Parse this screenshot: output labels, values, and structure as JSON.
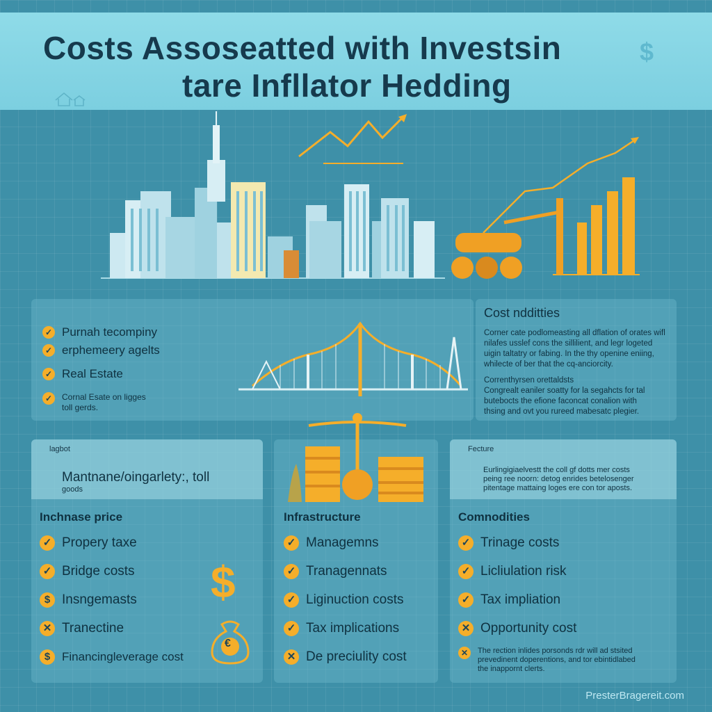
{
  "title": {
    "line1": "Costs Assoseatted with Investsin",
    "line2": "tare Infllator Hedding"
  },
  "middle_left_panel": {
    "items": [
      {
        "label": "Purnah tecompiny"
      },
      {
        "label": "erphemeery agelts"
      },
      {
        "label": "Real Estate"
      }
    ],
    "footnote": {
      "line1": "Cornal Esate on ligges",
      "line2": "toll gerds."
    }
  },
  "middle_right_panel": {
    "heading": "Cost ndditties",
    "para1": {
      "line1": "Corner cate podlomeasting all dflation of orates wifl",
      "line2": "nilafes usslef cons the sillilient, and legr logeted",
      "line3": "uigin taltatry or fabing. In the thy openine eniing,",
      "line4": "whilecte of ber that the cq-anciorcity."
    },
    "para2": {
      "line1": "Correnthyrsen orettaldsts",
      "line2": "Congrealt eaniler soatty for la segahcts for tal",
      "line3": "butebocts the efione faconcat conalion with",
      "line4": "thsing and ovt you rureed mabesatc plegier."
    }
  },
  "columns": [
    {
      "tag": "lagbot",
      "header_main": "Mantnane/oingarlety:, toll",
      "header_sub": "goods",
      "heading": "Inchnase price",
      "items": [
        {
          "label": "Propery taxe",
          "mark": "✓"
        },
        {
          "label": "Bridge costs",
          "mark": "✓"
        },
        {
          "label": "Insngemasts",
          "mark": "$"
        },
        {
          "label": "Tranectine",
          "mark": "✕"
        },
        {
          "label": "Financingleverage cost",
          "mark": "$"
        }
      ]
    },
    {
      "heading": "Infrastructure",
      "items": [
        {
          "label": "Managemns",
          "mark": "✓"
        },
        {
          "label": "Tranagennats",
          "mark": "✓"
        },
        {
          "label": "Liginuction costs",
          "mark": "✓"
        },
        {
          "label": "Tax implications",
          "mark": "✓"
        },
        {
          "label": "De preciulity cost",
          "mark": "✕"
        }
      ]
    },
    {
      "tag": "Fecture",
      "body": {
        "line1": "Eurlingigiaelvestt the coll gf dotts mer costs",
        "line2": "peing ree noorn: detog enrides betelosenger",
        "line3": "pitentage mattaing loges ere con tor aposts."
      },
      "heading": "Comnodities",
      "items": [
        {
          "label": "Trinage costs",
          "mark": "✓"
        },
        {
          "label": "Licliulation risk",
          "mark": "✓"
        },
        {
          "label": "Tax impliation",
          "mark": "✓"
        },
        {
          "label": "Opportunity cost",
          "mark": "✕"
        }
      ],
      "footnote": {
        "line1": "The rection inlides porsonds rdr will ad stsited",
        "line2": "prevedinent doperentions, and tor ebintidlabed",
        "line3": "the inappornt clerts."
      }
    }
  ],
  "icons": {
    "dollar_big": "$",
    "dollar_top": "$",
    "euro_bag": "€"
  },
  "watermark": "PresterBragereit.com",
  "colors": {
    "background": "#3e90a8",
    "banner": "#8fdbe8",
    "accent_orange": "#f5ae2a",
    "text_dark": "#0f3140"
  }
}
